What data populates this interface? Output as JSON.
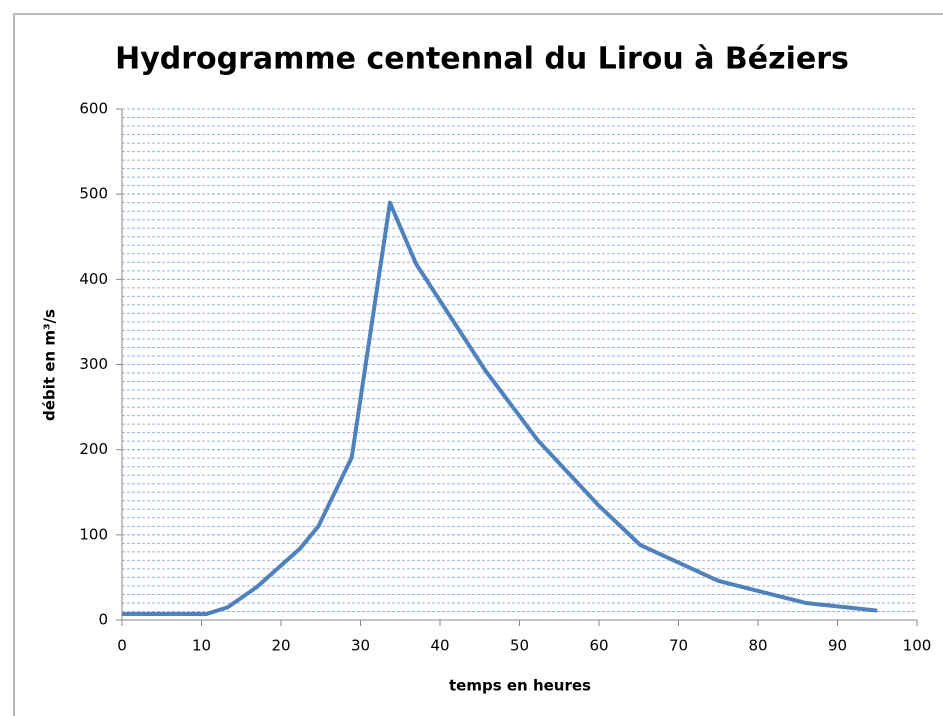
{
  "chart_data": {
    "type": "line",
    "title": "Hydrogramme centennal du Lirou à Béziers",
    "xlabel": "temps en heures",
    "ylabel": "débit en m³/s",
    "x": [
      0,
      10.6,
      13.3,
      17,
      22.4,
      24.7,
      28.9,
      33.7,
      37,
      45.7,
      52.3,
      59.9,
      65.2,
      75,
      86,
      95
    ],
    "series": [
      {
        "name": "débit",
        "color": "#4f81bd",
        "values": [
          7,
          7,
          15,
          39,
          84,
          110,
          191,
          490,
          418,
          293,
          211,
          135,
          88,
          46,
          20,
          11
        ]
      }
    ],
    "xlim": [
      0,
      100
    ],
    "xticks": [
      0,
      10,
      20,
      30,
      40,
      50,
      60,
      70,
      80,
      90,
      100
    ],
    "ylim": [
      0,
      600
    ],
    "yticks": [
      0,
      100,
      200,
      300,
      400,
      500,
      600
    ],
    "grid": true,
    "minor_grid_step": 10,
    "legend": false
  }
}
